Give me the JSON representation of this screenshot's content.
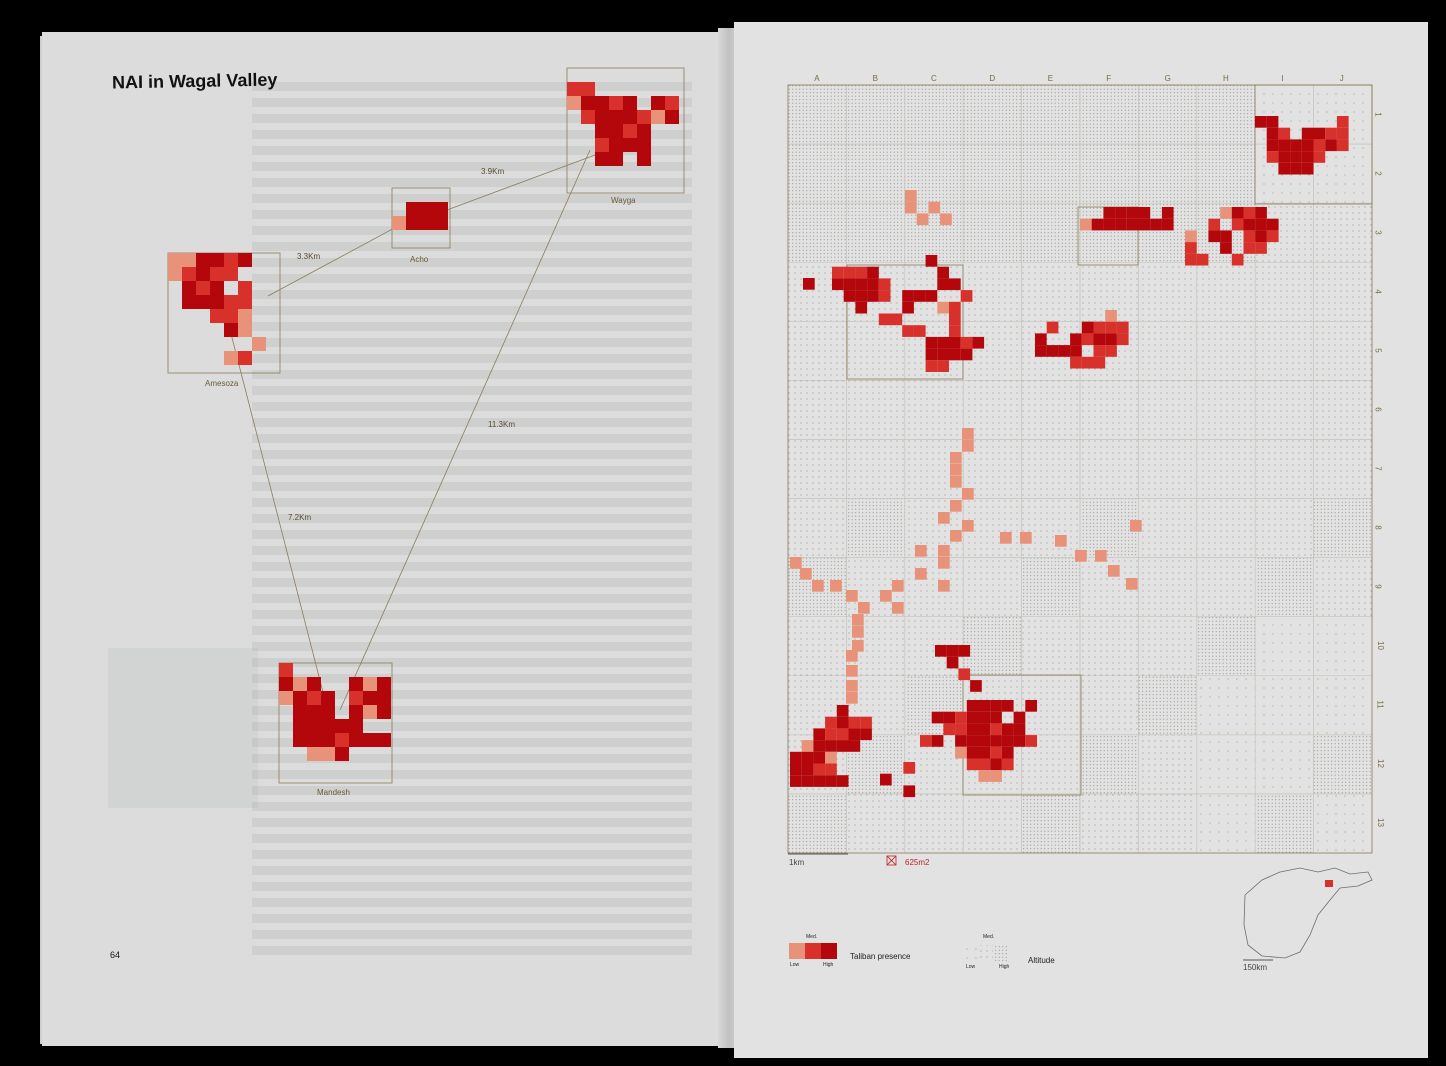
{
  "left_page": {
    "title": "NAI in Wagal Valley",
    "page_number": "64",
    "sites": [
      {
        "name": "Wayga"
      },
      {
        "name": "Acho"
      },
      {
        "name": "Amesoza"
      },
      {
        "name": "Mandesh"
      }
    ],
    "distances": [
      {
        "label": "3.9Km"
      },
      {
        "label": "3.3Km"
      },
      {
        "label": "11.3Km"
      },
      {
        "label": "7.2Km"
      }
    ]
  },
  "right_page": {
    "grid": {
      "columns": [
        "A",
        "B",
        "C",
        "D",
        "E",
        "F",
        "G",
        "H",
        "I",
        "J"
      ],
      "rows": [
        "1",
        "2",
        "3",
        "4",
        "5",
        "6",
        "7",
        "8",
        "9",
        "10",
        "11",
        "12",
        "13"
      ]
    },
    "scale_label": "1km",
    "cell_area_label": "625m2",
    "legend": {
      "taliban_presence": {
        "label": "Taliban presence",
        "low": "Low",
        "med": "Med.",
        "high": "High"
      },
      "altitude": {
        "label": "Altitude",
        "low": "Low",
        "med": "Med.",
        "high": "High"
      }
    },
    "locator_scale": "150km"
  },
  "colors": {
    "low": "#e8927a",
    "med": "#d8302a",
    "high": "#b4070c",
    "accent_text": "#c0202a"
  }
}
